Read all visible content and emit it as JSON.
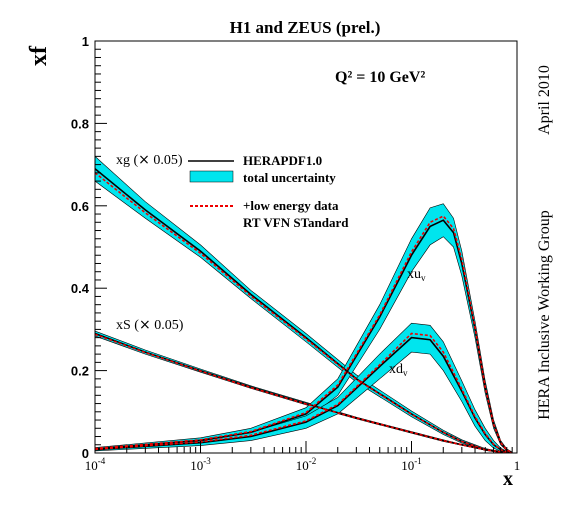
{
  "chart_data": {
    "type": "line",
    "title": "H1 and ZEUS (prel.)",
    "subtitle": "Q² = 10 GeV²",
    "xlabel": "x",
    "ylabel": "xf",
    "x_scale": "log",
    "xlim": [
      0.0001,
      1
    ],
    "ylim": [
      0,
      1
    ],
    "grid": false,
    "side_label_top": "April 2010",
    "side_label_bottom": "HERA Inclusive Working Group",
    "x_ticks": [
      {
        "value": 0.0001,
        "base": "10",
        "exp": "-4"
      },
      {
        "value": 0.001,
        "base": "10",
        "exp": "-3"
      },
      {
        "value": 0.01,
        "base": "10",
        "exp": "-2"
      },
      {
        "value": 0.1,
        "base": "10",
        "exp": "-1"
      },
      {
        "value": 1,
        "base": "1",
        "exp": ""
      }
    ],
    "y_ticks": [
      {
        "value": 0,
        "label": "0"
      },
      {
        "value": 0.2,
        "label": "0.2"
      },
      {
        "value": 0.4,
        "label": "0.4"
      },
      {
        "value": 0.6,
        "label": "0.6"
      },
      {
        "value": 0.8,
        "label": "0.8"
      },
      {
        "value": 1,
        "label": "1"
      }
    ],
    "legend": {
      "placement": "top-center",
      "entries": [
        {
          "label": "HERAPDF1.0",
          "style": "solid-black"
        },
        {
          "label": "total uncertainty",
          "style": "cyan-band"
        },
        {
          "label": "+low energy data",
          "style": "dashed-red"
        },
        {
          "label": "RT VFN STandard",
          "style": "none"
        }
      ]
    },
    "colors": {
      "band": "#00e5ee",
      "central": "#000000",
      "alt": "#ee0000"
    },
    "series": [
      {
        "name": "xg (× 0.05)",
        "label_text": "xg (",
        "label_times": "×",
        "label_end": " 0.05)",
        "x": [
          0.0001,
          0.0003,
          0.001,
          0.003,
          0.01,
          0.03,
          0.1,
          0.2,
          0.3,
          0.5,
          0.7,
          0.9
        ],
        "central": [
          0.69,
          0.59,
          0.49,
          0.385,
          0.28,
          0.18,
          0.095,
          0.05,
          0.028,
          0.008,
          0.002,
          0.0
        ],
        "upper": [
          0.72,
          0.61,
          0.505,
          0.395,
          0.29,
          0.19,
          0.102,
          0.055,
          0.032,
          0.011,
          0.004,
          0.001
        ],
        "lower": [
          0.66,
          0.57,
          0.475,
          0.375,
          0.27,
          0.172,
          0.088,
          0.045,
          0.024,
          0.006,
          0.001,
          0.0
        ],
        "alt": [
          0.68,
          0.583,
          0.485,
          0.381,
          0.277,
          0.179,
          0.094,
          0.05,
          0.028,
          0.008,
          0.002,
          0.0
        ]
      },
      {
        "name": "xS (× 0.05)",
        "label_text": "xS (",
        "label_times": "×",
        "label_end": " 0.05)",
        "x": [
          0.0001,
          0.0003,
          0.001,
          0.003,
          0.01,
          0.03,
          0.1,
          0.2,
          0.3,
          0.5,
          0.7,
          0.9
        ],
        "central": [
          0.29,
          0.245,
          0.2,
          0.16,
          0.12,
          0.085,
          0.05,
          0.03,
          0.02,
          0.008,
          0.003,
          0.0
        ],
        "upper": [
          0.296,
          0.25,
          0.204,
          0.163,
          0.123,
          0.087,
          0.052,
          0.032,
          0.021,
          0.009,
          0.003,
          0.001
        ],
        "lower": [
          0.284,
          0.24,
          0.196,
          0.157,
          0.117,
          0.083,
          0.048,
          0.028,
          0.019,
          0.007,
          0.002,
          0.0
        ],
        "alt": [
          0.288,
          0.244,
          0.199,
          0.159,
          0.119,
          0.085,
          0.05,
          0.03,
          0.02,
          0.008,
          0.003,
          0.0
        ]
      },
      {
        "name": "xuᵥ",
        "label_text": "xu",
        "label_sub": "v",
        "x": [
          0.0001,
          0.001,
          0.003,
          0.01,
          0.02,
          0.05,
          0.1,
          0.15,
          0.2,
          0.25,
          0.3,
          0.4,
          0.5,
          0.6,
          0.7,
          0.8,
          0.9
        ],
        "central": [
          0.01,
          0.03,
          0.05,
          0.095,
          0.16,
          0.33,
          0.48,
          0.55,
          0.565,
          0.535,
          0.46,
          0.3,
          0.16,
          0.07,
          0.025,
          0.007,
          0.001
        ],
        "upper": [
          0.013,
          0.037,
          0.06,
          0.11,
          0.18,
          0.36,
          0.52,
          0.595,
          0.605,
          0.57,
          0.49,
          0.32,
          0.175,
          0.08,
          0.03,
          0.01,
          0.002
        ],
        "lower": [
          0.007,
          0.023,
          0.04,
          0.08,
          0.14,
          0.3,
          0.44,
          0.505,
          0.525,
          0.5,
          0.43,
          0.28,
          0.145,
          0.06,
          0.02,
          0.005,
          0.0
        ],
        "alt": [
          0.011,
          0.032,
          0.052,
          0.098,
          0.165,
          0.335,
          0.488,
          0.56,
          0.575,
          0.545,
          0.47,
          0.305,
          0.16,
          0.07,
          0.025,
          0.007,
          0.001
        ]
      },
      {
        "name": "xdᵥ",
        "label_text": "xd",
        "label_sub": "v",
        "x": [
          0.0001,
          0.001,
          0.003,
          0.01,
          0.02,
          0.05,
          0.1,
          0.15,
          0.2,
          0.3,
          0.4,
          0.5,
          0.6,
          0.7,
          0.8,
          0.9
        ],
        "central": [
          0.008,
          0.025,
          0.04,
          0.075,
          0.115,
          0.21,
          0.28,
          0.275,
          0.235,
          0.15,
          0.085,
          0.045,
          0.02,
          0.008,
          0.002,
          0.0
        ],
        "upper": [
          0.011,
          0.032,
          0.05,
          0.09,
          0.135,
          0.24,
          0.315,
          0.31,
          0.27,
          0.175,
          0.105,
          0.06,
          0.03,
          0.012,
          0.004,
          0.001
        ],
        "lower": [
          0.005,
          0.018,
          0.03,
          0.06,
          0.095,
          0.18,
          0.245,
          0.24,
          0.2,
          0.125,
          0.065,
          0.03,
          0.012,
          0.004,
          0.001,
          0.0
        ],
        "alt": [
          0.009,
          0.027,
          0.043,
          0.078,
          0.118,
          0.214,
          0.29,
          0.285,
          0.245,
          0.155,
          0.088,
          0.047,
          0.021,
          0.008,
          0.002,
          0.0
        ]
      }
    ]
  }
}
